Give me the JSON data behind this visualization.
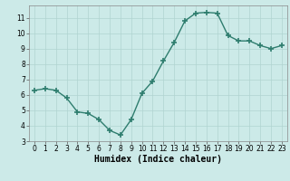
{
  "x": [
    0,
    1,
    2,
    3,
    4,
    5,
    6,
    7,
    8,
    9,
    10,
    11,
    12,
    13,
    14,
    15,
    16,
    17,
    18,
    19,
    20,
    21,
    22,
    23
  ],
  "y": [
    6.3,
    6.4,
    6.3,
    5.8,
    4.9,
    4.8,
    4.4,
    3.7,
    3.4,
    4.4,
    6.1,
    6.9,
    8.2,
    9.4,
    10.8,
    11.3,
    11.35,
    11.3,
    9.85,
    9.5,
    9.5,
    9.2,
    9.0,
    9.2
  ],
  "line_color": "#2e7d6e",
  "marker": "+",
  "markersize": 4,
  "markeredgewidth": 1.2,
  "linewidth": 1.0,
  "bg_color": "#cceae8",
  "grid_color": "#b0d4d0",
  "xlabel": "Humidex (Indice chaleur)",
  "xlim": [
    -0.5,
    23.5
  ],
  "ylim": [
    3,
    11.8
  ],
  "yticks": [
    3,
    4,
    5,
    6,
    7,
    8,
    9,
    10,
    11
  ],
  "xticks": [
    0,
    1,
    2,
    3,
    4,
    5,
    6,
    7,
    8,
    9,
    10,
    11,
    12,
    13,
    14,
    15,
    16,
    17,
    18,
    19,
    20,
    21,
    22,
    23
  ],
  "tick_labelsize": 5.5,
  "xlabel_fontsize": 7,
  "ylabel_fontsize": 6
}
